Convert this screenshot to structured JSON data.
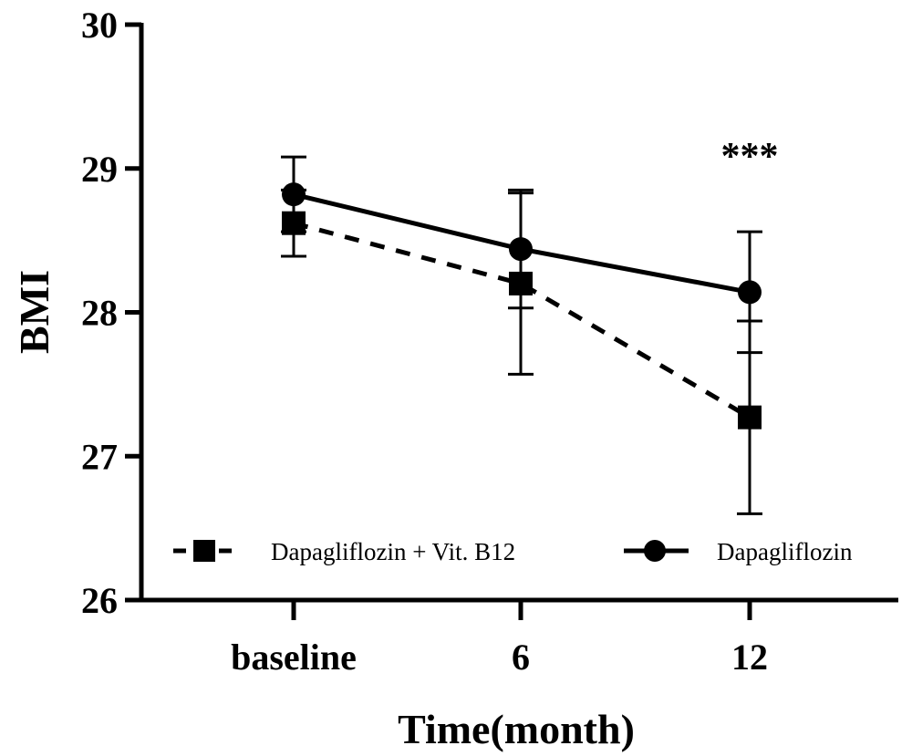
{
  "chart_data": {
    "type": "line",
    "xlabel": "Time(month)",
    "ylabel": "BMI",
    "categories": [
      "baseline",
      "6",
      "12"
    ],
    "ylim": [
      26,
      30
    ],
    "yticks": [
      "26",
      "27",
      "28",
      "29",
      "30"
    ],
    "series": [
      {
        "name": "Dapagliflozin + Vit. B12",
        "marker": "square",
        "line_style": "dashed",
        "values": [
          28.62,
          28.2,
          27.27
        ],
        "error": [
          0.23,
          0.63,
          0.67
        ]
      },
      {
        "name": "Dapagliflozin",
        "marker": "circle",
        "line_style": "solid",
        "values": [
          28.82,
          28.44,
          28.14
        ],
        "error": [
          0.26,
          0.41,
          0.42
        ]
      }
    ],
    "annotations": [
      {
        "text": "***",
        "category": "12"
      }
    ],
    "legend": "bottom",
    "grid": false
  },
  "colors": {
    "line": "#000000",
    "background": "#ffffff"
  }
}
